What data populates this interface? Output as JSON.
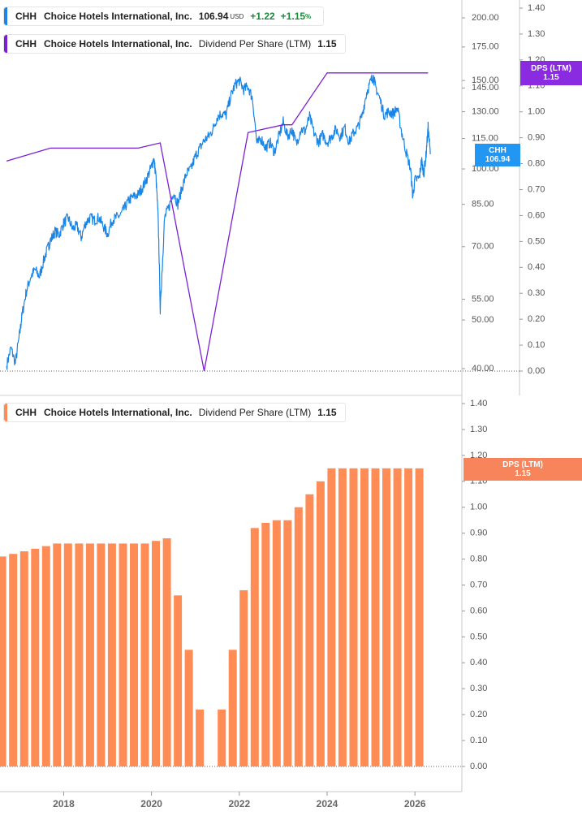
{
  "legends": {
    "top_price": {
      "ticker": "CHH",
      "name": "Choice Hotels International, Inc.",
      "value": "106.94",
      "currency": "USD",
      "change": "+1.22",
      "change_pct": "+1.15",
      "pct_sign": "%"
    },
    "top_dps": {
      "ticker": "CHH",
      "name": "Choice Hotels International, Inc.",
      "label": "Dividend Per Share (LTM)",
      "value": "1.15"
    },
    "bottom_dps": {
      "ticker": "CHH",
      "name": "Choice Hotels International, Inc.",
      "label": "Dividend Per Share (LTM)",
      "value": "1.15"
    }
  },
  "flags": {
    "dps_top": {
      "title": "DPS (LTM)",
      "value": "1.15"
    },
    "price": {
      "title": "CHH",
      "value": "106.94"
    },
    "dps_bottom": {
      "title": "DPS (LTM)",
      "value": "1.15"
    }
  },
  "colors": {
    "price": "#1a85e6",
    "dps_line": "#7b1fd6",
    "dps_bar": "#ff8c55",
    "dps_flag_top": "#8a2be2",
    "price_flag": "#2196f3",
    "dps_flag_bottom": "#f7845a",
    "grid": "#dddddd",
    "axis_text": "#555555"
  },
  "chart_data": [
    {
      "type": "line",
      "title": "",
      "series": [
        {
          "name": "CHH",
          "axis": "left",
          "scale": "log",
          "points": [
            [
              2016.7,
              40.5
            ],
            [
              2016.8,
              44
            ],
            [
              2016.9,
              41
            ],
            [
              2017.0,
              47
            ],
            [
              2017.05,
              51
            ],
            [
              2017.15,
              57
            ],
            [
              2017.25,
              61
            ],
            [
              2017.35,
              63
            ],
            [
              2017.45,
              61
            ],
            [
              2017.55,
              66
            ],
            [
              2017.65,
              70
            ],
            [
              2017.7,
              72
            ],
            [
              2017.8,
              75
            ],
            [
              2017.9,
              74
            ],
            [
              2018.0,
              78
            ],
            [
              2018.1,
              80
            ],
            [
              2018.2,
              76
            ],
            [
              2018.3,
              77
            ],
            [
              2018.4,
              73
            ],
            [
              2018.5,
              78
            ],
            [
              2018.6,
              80
            ],
            [
              2018.7,
              79
            ],
            [
              2018.8,
              80
            ],
            [
              2018.9,
              77
            ],
            [
              2019.0,
              74
            ],
            [
              2019.1,
              79
            ],
            [
              2019.2,
              80
            ],
            [
              2019.3,
              81
            ],
            [
              2019.4,
              84
            ],
            [
              2019.5,
              87
            ],
            [
              2019.6,
              88
            ],
            [
              2019.7,
              89
            ],
            [
              2019.8,
              92
            ],
            [
              2019.9,
              96
            ],
            [
              2020.0,
              101
            ],
            [
              2020.05,
              105
            ],
            [
              2020.1,
              97
            ],
            [
              2020.15,
              80
            ],
            [
              2020.2,
              52
            ],
            [
              2020.25,
              65
            ],
            [
              2020.3,
              80
            ],
            [
              2020.4,
              84
            ],
            [
              2020.5,
              90
            ],
            [
              2020.6,
              85
            ],
            [
              2020.7,
              92
            ],
            [
              2020.8,
              98
            ],
            [
              2020.9,
              100
            ],
            [
              2021.0,
              106
            ],
            [
              2021.1,
              110
            ],
            [
              2021.2,
              114
            ],
            [
              2021.3,
              116
            ],
            [
              2021.4,
              120
            ],
            [
              2021.5,
              127
            ],
            [
              2021.6,
              129
            ],
            [
              2021.7,
              128
            ],
            [
              2021.8,
              139
            ],
            [
              2021.9,
              147
            ],
            [
              2022.0,
              150
            ],
            [
              2022.1,
              144
            ],
            [
              2022.2,
              146
            ],
            [
              2022.3,
              138
            ],
            [
              2022.4,
              112
            ],
            [
              2022.5,
              115
            ],
            [
              2022.6,
              110
            ],
            [
              2022.7,
              113
            ],
            [
              2022.8,
              108
            ],
            [
              2022.9,
              116
            ],
            [
              2023.0,
              124
            ],
            [
              2023.1,
              116
            ],
            [
              2023.2,
              120
            ],
            [
              2023.3,
              112
            ],
            [
              2023.4,
              120
            ],
            [
              2023.5,
              119
            ],
            [
              2023.6,
              127
            ],
            [
              2023.7,
              118
            ],
            [
              2023.8,
              113
            ],
            [
              2023.9,
              117
            ],
            [
              2024.0,
              113
            ],
            [
              2024.1,
              116
            ],
            [
              2024.2,
              120
            ],
            [
              2024.3,
              116
            ],
            [
              2024.4,
              121
            ],
            [
              2024.5,
              113
            ],
            [
              2024.6,
              118
            ],
            [
              2024.7,
              121
            ],
            [
              2024.8,
              128
            ],
            [
              2024.9,
              142
            ],
            [
              2025.0,
              150
            ],
            [
              2025.05,
              153
            ],
            [
              2025.1,
              146
            ],
            [
              2025.2,
              138
            ],
            [
              2025.3,
              128
            ],
            [
              2025.4,
              130
            ],
            [
              2025.5,
              129
            ],
            [
              2025.6,
              132
            ],
            [
              2025.7,
              118
            ],
            [
              2025.8,
              108
            ],
            [
              2025.9,
              100
            ],
            [
              2025.95,
              88
            ],
            [
              2026.0,
              95
            ],
            [
              2026.1,
              96
            ],
            [
              2026.15,
              104
            ],
            [
              2026.2,
              98
            ],
            [
              2026.25,
              106
            ],
            [
              2026.3,
              121
            ],
            [
              2026.35,
              106.94
            ]
          ]
        },
        {
          "name": "Dividend Per Share (LTM)",
          "axis": "right",
          "scale": "linear",
          "points": [
            [
              2016.7,
              0.81
            ],
            [
              2017.7,
              0.86
            ],
            [
              2019.7,
              0.86
            ],
            [
              2020.2,
              0.88
            ],
            [
              2021.2,
              0.0
            ],
            [
              2022.2,
              0.92
            ],
            [
              2023.0,
              0.95
            ],
            [
              2023.2,
              0.95
            ],
            [
              2024.0,
              1.15
            ],
            [
              2026.3,
              1.15
            ]
          ]
        }
      ],
      "y_left": {
        "ticks": [
          200,
          175,
          150,
          145,
          130,
          115,
          100,
          85,
          70,
          55,
          50,
          40
        ],
        "tick_labels": [
          "200.00",
          "175.00",
          "150.00",
          "145.00",
          "130.00",
          "115.00",
          "100.00",
          "85.00",
          "70.00",
          "55.00",
          "50.00",
          "40.00"
        ],
        "range": [
          40,
          221
        ]
      },
      "y_right": {
        "range": [
          0,
          1.4
        ],
        "ticks": [
          1.4,
          1.3,
          1.2,
          1.1,
          1.0,
          0.9,
          0.8,
          0.7,
          0.6,
          0.5,
          0.4,
          0.3,
          0.2,
          0.1,
          0.0
        ],
        "tick_labels": [
          "1.40",
          "1.30",
          "1.20",
          "1.10",
          "1.00",
          "0.90",
          "0.80",
          "0.70",
          "0.60",
          "0.50",
          "0.40",
          "0.30",
          "0.20",
          "0.10",
          "0.00"
        ]
      }
    },
    {
      "type": "bar",
      "title": "",
      "series": [
        {
          "name": "Dividend Per Share (LTM)",
          "x": [
            2016.6,
            2016.85,
            2017.1,
            2017.35,
            2017.6,
            2017.85,
            2018.1,
            2018.35,
            2018.6,
            2018.85,
            2019.1,
            2019.35,
            2019.6,
            2019.85,
            2020.1,
            2020.35,
            2020.6,
            2020.85,
            2021.1,
            2021.35,
            2021.6,
            2021.85,
            2022.1,
            2022.35,
            2022.6,
            2022.85,
            2023.1,
            2023.35,
            2023.6,
            2023.85,
            2024.1,
            2024.35,
            2024.6,
            2024.85,
            2025.1,
            2025.35,
            2025.6,
            2025.85,
            2026.1
          ],
          "values": [
            0.81,
            0.82,
            0.83,
            0.84,
            0.85,
            0.86,
            0.86,
            0.86,
            0.86,
            0.86,
            0.86,
            0.86,
            0.86,
            0.86,
            0.87,
            0.88,
            0.66,
            0.45,
            0.22,
            0.0,
            0.22,
            0.45,
            0.68,
            0.92,
            0.94,
            0.95,
            0.95,
            1.0,
            1.05,
            1.1,
            1.15,
            1.15,
            1.15,
            1.15,
            1.15,
            1.15,
            1.15,
            1.15,
            1.15
          ]
        }
      ],
      "y_right": {
        "range": [
          0,
          1.4
        ],
        "ticks": [
          1.4,
          1.3,
          1.2,
          1.1,
          1.0,
          0.9,
          0.8,
          0.7,
          0.6,
          0.5,
          0.4,
          0.3,
          0.2,
          0.1,
          0.0
        ],
        "tick_labels": [
          "1.40",
          "1.30",
          "1.20",
          "1.10",
          "1.00",
          "0.90",
          "0.80",
          "0.70",
          "0.60",
          "0.50",
          "0.40",
          "0.30",
          "0.20",
          "0.10",
          "0.00"
        ]
      },
      "x_axis": {
        "ticks": [
          2018,
          2020,
          2022,
          2024,
          2026
        ],
        "tick_labels": [
          "2018",
          "2020",
          "2022",
          "2024",
          "2026"
        ],
        "range": [
          2016.55,
          2027.05
        ]
      }
    }
  ]
}
